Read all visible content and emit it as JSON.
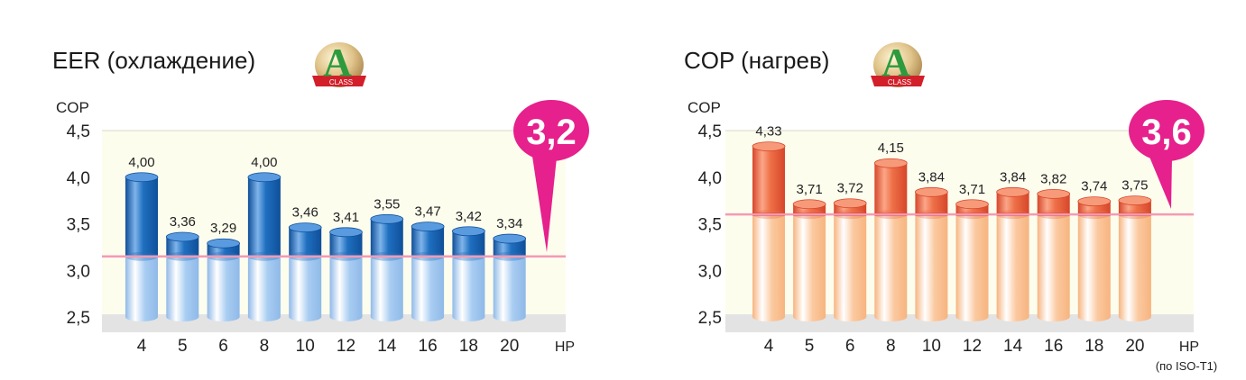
{
  "charts": [
    {
      "title": "EER (охлаждение)",
      "badge": {
        "letter": "A",
        "ribbon": "CLASS"
      },
      "chart_data": {
        "type": "bar",
        "ylabel": "COP",
        "xlabel": "HP",
        "xlabel_note": "",
        "ylim": [
          2.5,
          4.5
        ],
        "yticks": [
          "2,5",
          "3,0",
          "3,5",
          "4,0",
          "4,5"
        ],
        "categories": [
          "4",
          "5",
          "6",
          "8",
          "10",
          "12",
          "14",
          "16",
          "18",
          "20"
        ],
        "values": [
          4.0,
          3.36,
          3.29,
          4.0,
          3.46,
          3.41,
          3.55,
          3.47,
          3.42,
          3.34
        ],
        "value_labels": [
          "4,00",
          "3,36",
          "3,29",
          "4,00",
          "3,46",
          "3,41",
          "3,55",
          "3,47",
          "3,42",
          "3,34"
        ],
        "threshold": 3.15,
        "callout": "3,2",
        "legend": "none",
        "grid": false
      },
      "colors": {
        "top": "#1f6fc0",
        "bottom": "#a9cdf2",
        "line": "#f39ab5",
        "plot_bg": "#fdfdee",
        "floor": "#e3e3e3",
        "callout": "#e6208c"
      }
    },
    {
      "title": "COP (нагрев)",
      "badge": {
        "letter": "A",
        "ribbon": "CLASS"
      },
      "chart_data": {
        "type": "bar",
        "ylabel": "COP",
        "xlabel": "HP",
        "xlabel_note": "(по ISO-T1)",
        "ylim": [
          2.5,
          4.5
        ],
        "yticks": [
          "2,5",
          "3,0",
          "3,5",
          "4,0",
          "4,5"
        ],
        "categories": [
          "4",
          "5",
          "6",
          "8",
          "10",
          "12",
          "14",
          "16",
          "18",
          "20"
        ],
        "values": [
          4.33,
          3.71,
          3.72,
          4.15,
          3.84,
          3.71,
          3.84,
          3.82,
          3.74,
          3.75
        ],
        "value_labels": [
          "4,33",
          "3,71",
          "3,72",
          "4,15",
          "3,84",
          "3,71",
          "3,84",
          "3,82",
          "3,74",
          "3,75"
        ],
        "threshold": 3.6,
        "callout": "3,6",
        "legend": "none",
        "grid": false
      },
      "colors": {
        "top": "#ee7048",
        "bottom": "#fbc9a0",
        "line": "#f39ab5",
        "inner_line": "#c41a1a",
        "plot_bg": "#fdfdee",
        "floor": "#e3e3e3",
        "callout": "#e6208c"
      }
    }
  ]
}
